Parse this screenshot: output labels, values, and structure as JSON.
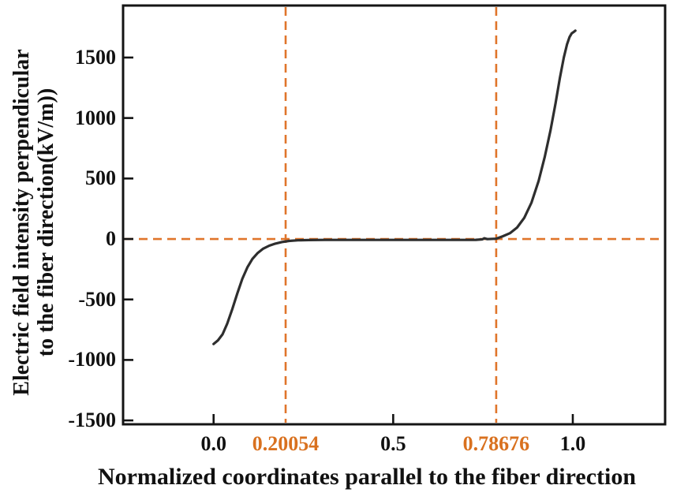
{
  "page": {
    "background": "#ffffff"
  },
  "colors": {
    "accent_orange": "#D9711F",
    "dash_orange": "#E0752B",
    "curve": "#2e2e2e",
    "frame": "#141414",
    "text": "#111111"
  },
  "chart_data": {
    "type": "line",
    "title": "",
    "xlabel": "Normalized coordinates parallel to the fiber direction",
    "ylabel_lines": [
      "Electric field intensity perpendicular",
      "to the fiber direction(kV/m))"
    ],
    "xlim": [
      -0.252,
      1.257
    ],
    "ylim": [
      -1532,
      1930
    ],
    "grid": false,
    "legend": "none",
    "x_ticks": [
      {
        "value": 0.0,
        "label": "0.0",
        "highlight": false
      },
      {
        "value": 0.20054,
        "label": "0.20054",
        "highlight": true
      },
      {
        "value": 0.5,
        "label": "0.5",
        "highlight": false
      },
      {
        "value": 0.78676,
        "label": "0.78676",
        "highlight": true
      },
      {
        "value": 1.0,
        "label": "1.0",
        "highlight": false
      }
    ],
    "y_ticks": [
      {
        "value": 1500,
        "label": "1500"
      },
      {
        "value": 1000,
        "label": "1000"
      },
      {
        "value": 500,
        "label": "500"
      },
      {
        "value": 0,
        "label": "0"
      },
      {
        "value": -500,
        "label": "-500"
      },
      {
        "value": -1000,
        "label": "-1000"
      },
      {
        "value": -1500,
        "label": "-1500"
      }
    ],
    "reference_lines": {
      "horizontal_y": [
        0
      ],
      "vertical_x": [
        0.20054,
        0.78676
      ],
      "style": "dashed"
    },
    "series": [
      {
        "name": "electric-field-intensity-curve",
        "x": [
          0.0,
          0.012,
          0.025,
          0.038,
          0.052,
          0.066,
          0.08,
          0.094,
          0.108,
          0.123,
          0.138,
          0.155,
          0.172,
          0.19,
          0.21,
          0.235,
          0.265,
          0.31,
          0.38,
          0.46,
          0.54,
          0.62,
          0.69,
          0.73,
          0.748,
          0.754,
          0.762,
          0.786,
          0.805,
          0.825,
          0.845,
          0.865,
          0.885,
          0.905,
          0.922,
          0.938,
          0.952,
          0.964,
          0.975,
          0.984,
          0.991,
          0.997,
          1.002,
          1.007
        ],
        "y": [
          -868,
          -838,
          -788,
          -700,
          -580,
          -450,
          -330,
          -235,
          -165,
          -115,
          -80,
          -55,
          -38,
          -25,
          -16,
          -11,
          -9,
          -8,
          -8,
          -8,
          -8,
          -8,
          -8,
          -7,
          -3,
          6,
          -1,
          2,
          22,
          48,
          95,
          175,
          300,
          480,
          680,
          900,
          1120,
          1330,
          1500,
          1610,
          1670,
          1700,
          1710,
          1722
        ]
      }
    ]
  }
}
